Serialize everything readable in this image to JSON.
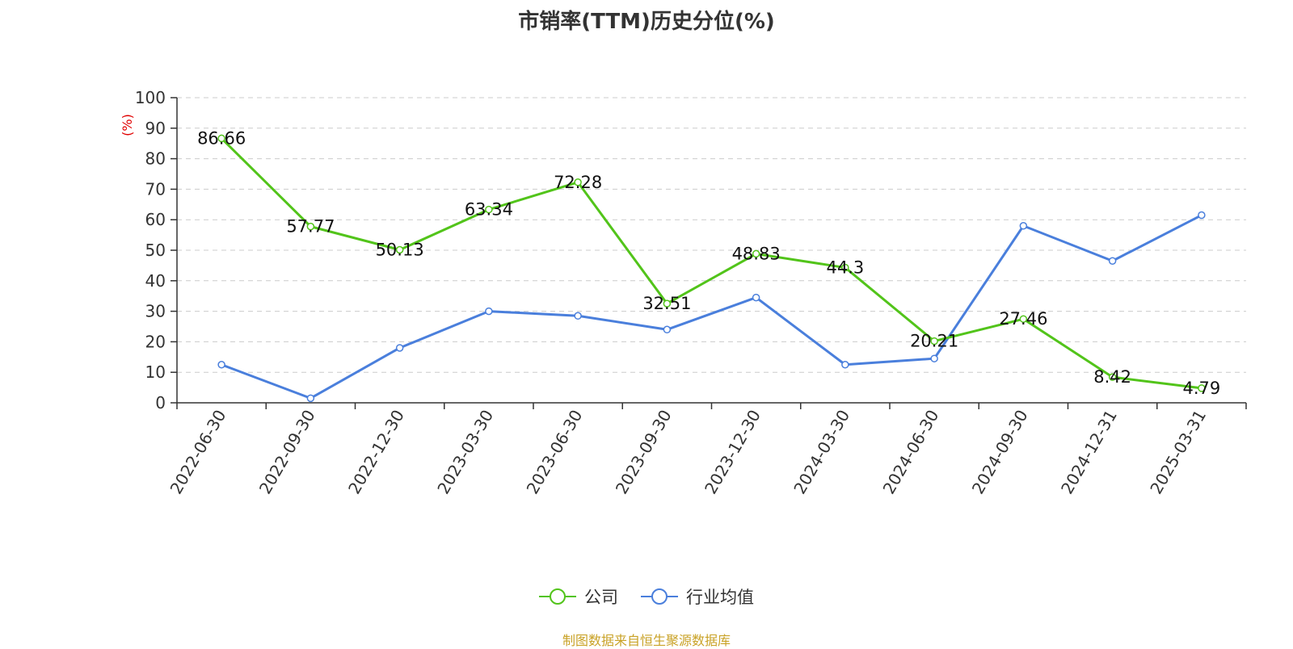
{
  "chart_data": {
    "type": "line",
    "title": "市销率(TTM)历史分位(%)",
    "ylabel": "(%)",
    "xlabel": "",
    "ylim": [
      0,
      100
    ],
    "yticks": [
      0,
      10,
      20,
      30,
      40,
      50,
      60,
      70,
      80,
      90,
      100
    ],
    "categories": [
      "2022-06-30",
      "2022-09-30",
      "2022-12-30",
      "2023-03-30",
      "2023-06-30",
      "2023-09-30",
      "2023-12-30",
      "2024-03-30",
      "2024-06-30",
      "2024-09-30",
      "2024-12-31",
      "2025-03-31"
    ],
    "grid": true,
    "legend_position": "bottom",
    "series": [
      {
        "name": "公司",
        "color": "#52c41a",
        "values": [
          86.66,
          57.77,
          50.13,
          63.34,
          72.28,
          32.51,
          48.83,
          44.3,
          20.21,
          27.46,
          8.42,
          4.79
        ],
        "labels": [
          "86.66",
          "57.77",
          "50.13",
          "63.34",
          "72.28",
          "32.51",
          "48.83",
          "44.3",
          "20.21",
          "27.46",
          "8.42",
          "4.79"
        ],
        "show_labels": true
      },
      {
        "name": "行业均值",
        "color": "#4a7fdc",
        "values": [
          12.5,
          1.5,
          18.0,
          30.0,
          28.5,
          24.0,
          34.5,
          12.5,
          14.5,
          58.0,
          46.5,
          61.5
        ],
        "show_labels": false
      }
    ]
  },
  "source_text": "制图数据来自恒生聚源数据库"
}
